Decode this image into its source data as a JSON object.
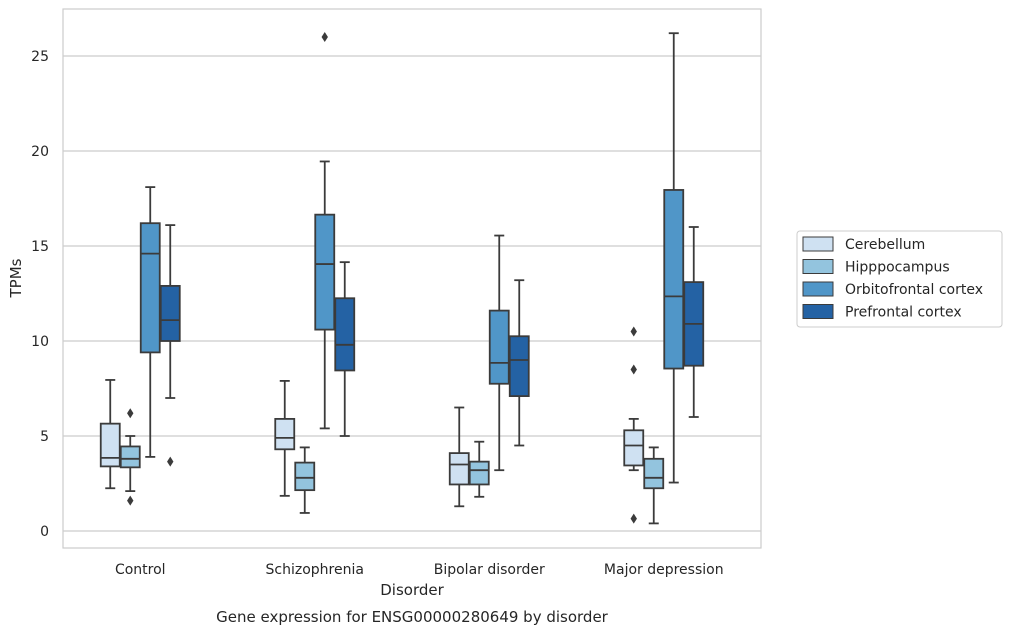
{
  "chart_data": {
    "type": "box",
    "caption": "Gene expression for ENSG00000280649 by disorder",
    "xlabel": "Disorder",
    "ylabel": "TPMs",
    "ylim": [
      -0.8,
      27.4
    ],
    "yticks": [
      0,
      5,
      10,
      15,
      20,
      25
    ],
    "ytick_labels": [
      "0",
      "5",
      "10",
      "15",
      "20",
      "25"
    ],
    "grid": "horizontal",
    "legend_position": "right",
    "categories": [
      "Control",
      "Schizophrenia",
      "Bipolar disorder",
      "Major depression"
    ],
    "series": [
      {
        "name": "Cerebellum",
        "color": "#cfe1f2",
        "boxes": [
          {
            "whislo": 2.25,
            "q1": 3.4,
            "med": 3.85,
            "q3": 5.65,
            "whishi": 7.95,
            "fliers": []
          },
          {
            "whislo": 1.85,
            "q1": 4.3,
            "med": 4.9,
            "q3": 5.9,
            "whishi": 7.9,
            "fliers": []
          },
          {
            "whislo": 1.3,
            "q1": 2.45,
            "med": 3.5,
            "q3": 4.1,
            "whishi": 6.5,
            "fliers": []
          },
          {
            "whislo": 3.2,
            "q1": 3.45,
            "med": 4.5,
            "q3": 5.3,
            "whishi": 5.9,
            "fliers": [
              10.5,
              8.5,
              0.65
            ]
          }
        ]
      },
      {
        "name": "Hipppocampus",
        "color": "#93c4de",
        "boxes": [
          {
            "whislo": 2.1,
            "q1": 3.35,
            "med": 3.8,
            "q3": 4.45,
            "whishi": 5.0,
            "fliers": [
              6.2,
              1.6
            ]
          },
          {
            "whislo": 0.95,
            "q1": 2.15,
            "med": 2.8,
            "q3": 3.6,
            "whishi": 4.4,
            "fliers": []
          },
          {
            "whislo": 1.8,
            "q1": 2.45,
            "med": 3.2,
            "q3": 3.65,
            "whishi": 4.7,
            "fliers": []
          },
          {
            "whislo": 0.4,
            "q1": 2.25,
            "med": 2.8,
            "q3": 3.8,
            "whishi": 4.4,
            "fliers": []
          }
        ]
      },
      {
        "name": "Orbitofrontal cortex",
        "color": "#5096c8",
        "boxes": [
          {
            "whislo": 3.9,
            "q1": 9.4,
            "med": 14.6,
            "q3": 16.2,
            "whishi": 18.1,
            "fliers": []
          },
          {
            "whislo": 5.4,
            "q1": 10.6,
            "med": 14.05,
            "q3": 16.65,
            "whishi": 19.45,
            "fliers": [
              26.0
            ]
          },
          {
            "whislo": 3.2,
            "q1": 7.75,
            "med": 8.85,
            "q3": 11.6,
            "whishi": 15.55,
            "fliers": []
          },
          {
            "whislo": 2.55,
            "q1": 8.55,
            "med": 12.35,
            "q3": 17.95,
            "whishi": 26.2,
            "fliers": []
          }
        ]
      },
      {
        "name": "Prefrontal cortex",
        "color": "#2462a4",
        "boxes": [
          {
            "whislo": 7.0,
            "q1": 10.0,
            "med": 11.1,
            "q3": 12.9,
            "whishi": 16.1,
            "fliers": [
              3.65
            ]
          },
          {
            "whislo": 5.0,
            "q1": 8.45,
            "med": 9.8,
            "q3": 12.25,
            "whishi": 14.15,
            "fliers": []
          },
          {
            "whislo": 4.5,
            "q1": 7.1,
            "med": 9.0,
            "q3": 10.25,
            "whishi": 13.2,
            "fliers": []
          },
          {
            "whislo": 6.0,
            "q1": 8.7,
            "med": 10.9,
            "q3": 13.1,
            "whishi": 16.0,
            "fliers": []
          }
        ]
      }
    ]
  }
}
